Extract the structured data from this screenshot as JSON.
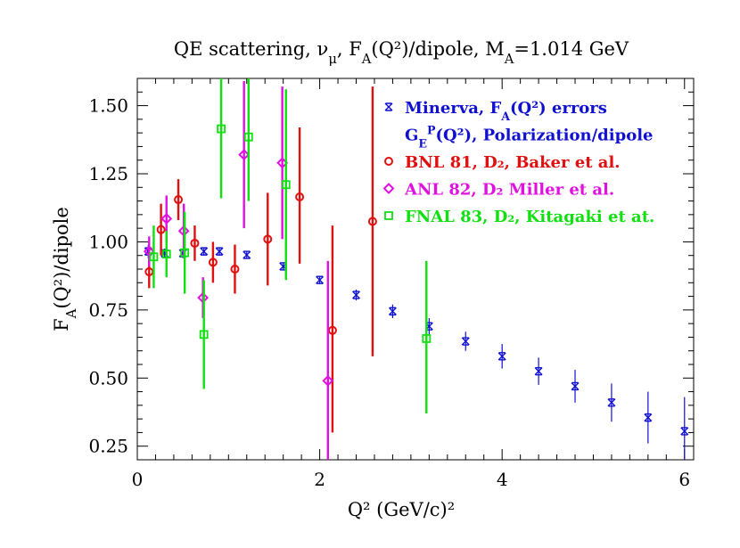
{
  "chart_data": {
    "type": "scatter",
    "title": "QE scattering, ν_μ, F_A(Q²)/dipole, M_A=1.014 GeV",
    "xlabel": "Q² (GeV/c)²",
    "ylabel": "F_A(Q²)/dipole",
    "xlim": [
      0,
      6.1
    ],
    "ylim": [
      0.2,
      1.6
    ],
    "x_ticks": [
      0,
      2,
      4,
      6
    ],
    "x_tick_labels": [
      "0",
      "2",
      "4",
      "6"
    ],
    "y_ticks": [
      0.25,
      0.5,
      0.75,
      1.0,
      1.25,
      1.5
    ],
    "y_tick_labels": [
      "0.25",
      "0.50",
      "0.75",
      "1.00",
      "1.25",
      "1.50"
    ],
    "legend_position": "top-right",
    "series": [
      {
        "name": "Minerva, F_A(Q²) errors",
        "marker": "star",
        "color": "#1010d0",
        "points": [
          {
            "x": 0.12,
            "y": 0.965,
            "lo": 0.94,
            "hi": 0.99
          },
          {
            "x": 0.3,
            "y": 0.958,
            "lo": 0.94,
            "hi": 0.975
          },
          {
            "x": 0.5,
            "y": 0.958,
            "lo": 0.94,
            "hi": 0.975
          },
          {
            "x": 0.73,
            "y": 0.965,
            "lo": 0.95,
            "hi": 0.98
          },
          {
            "x": 0.9,
            "y": 0.965,
            "lo": 0.95,
            "hi": 0.98
          },
          {
            "x": 1.2,
            "y": 0.952,
            "lo": 0.94,
            "hi": 0.965
          },
          {
            "x": 1.6,
            "y": 0.91,
            "lo": 0.895,
            "hi": 0.925
          },
          {
            "x": 2.0,
            "y": 0.86,
            "lo": 0.845,
            "hi": 0.875
          },
          {
            "x": 2.4,
            "y": 0.805,
            "lo": 0.785,
            "hi": 0.825
          },
          {
            "x": 2.8,
            "y": 0.745,
            "lo": 0.72,
            "hi": 0.77
          },
          {
            "x": 3.2,
            "y": 0.69,
            "lo": 0.66,
            "hi": 0.72
          },
          {
            "x": 3.6,
            "y": 0.635,
            "lo": 0.6,
            "hi": 0.67
          },
          {
            "x": 4.0,
            "y": 0.58,
            "lo": 0.535,
            "hi": 0.625
          },
          {
            "x": 4.4,
            "y": 0.525,
            "lo": 0.475,
            "hi": 0.575
          },
          {
            "x": 4.8,
            "y": 0.47,
            "lo": 0.41,
            "hi": 0.53
          },
          {
            "x": 5.2,
            "y": 0.41,
            "lo": 0.34,
            "hi": 0.48
          },
          {
            "x": 5.6,
            "y": 0.355,
            "lo": 0.26,
            "hi": 0.45
          },
          {
            "x": 6.0,
            "y": 0.305,
            "lo": 0.2,
            "hi": 0.43
          }
        ]
      },
      {
        "name": "G_E^P(Q²), Polarization/dipole",
        "marker": "none",
        "color": "#1010d0",
        "points": []
      },
      {
        "name": "BNL 81, D₂, Baker et al.",
        "marker": "circle",
        "color": "#e01010",
        "points": [
          {
            "x": 0.13,
            "y": 0.89,
            "lo": 0.83,
            "hi": 0.95
          },
          {
            "x": 0.26,
            "y": 1.045,
            "lo": 0.95,
            "hi": 1.14
          },
          {
            "x": 0.45,
            "y": 1.155,
            "lo": 1.08,
            "hi": 1.23
          },
          {
            "x": 0.63,
            "y": 0.995,
            "lo": 0.93,
            "hi": 1.06
          },
          {
            "x": 0.83,
            "y": 0.925,
            "lo": 0.85,
            "hi": 1.0
          },
          {
            "x": 1.07,
            "y": 0.9,
            "lo": 0.81,
            "hi": 0.99
          },
          {
            "x": 1.43,
            "y": 1.01,
            "lo": 0.84,
            "hi": 1.18
          },
          {
            "x": 1.78,
            "y": 1.165,
            "lo": 0.92,
            "hi": 1.42
          },
          {
            "x": 2.14,
            "y": 0.675,
            "lo": 0.3,
            "hi": 1.06
          },
          {
            "x": 2.58,
            "y": 1.075,
            "lo": 0.58,
            "hi": 1.57
          }
        ]
      },
      {
        "name": "ANL 82, D₂ Miller et al.",
        "marker": "diamond",
        "color": "#e010e0",
        "points": [
          {
            "x": 0.13,
            "y": 0.965,
            "lo": 0.91,
            "hi": 1.02
          },
          {
            "x": 0.32,
            "y": 1.085,
            "lo": 1.0,
            "hi": 1.17
          },
          {
            "x": 0.51,
            "y": 1.04,
            "lo": 0.94,
            "hi": 1.14
          },
          {
            "x": 0.72,
            "y": 0.795,
            "lo": 0.72,
            "hi": 0.87
          },
          {
            "x": 1.17,
            "y": 1.32,
            "lo": 1.05,
            "hi": 1.59
          },
          {
            "x": 1.59,
            "y": 1.29,
            "lo": 1.01,
            "hi": 1.57
          },
          {
            "x": 2.09,
            "y": 0.49,
            "lo": 0.05,
            "hi": 0.93
          }
        ]
      },
      {
        "name": "FNAL 83, D₂, Kitagaki et at.",
        "marker": "square",
        "color": "#10e010",
        "points": [
          {
            "x": 0.18,
            "y": 0.945,
            "lo": 0.83,
            "hi": 1.06
          },
          {
            "x": 0.32,
            "y": 0.955,
            "lo": 0.87,
            "hi": 1.04
          },
          {
            "x": 0.52,
            "y": 0.96,
            "lo": 0.81,
            "hi": 1.11
          },
          {
            "x": 0.73,
            "y": 0.66,
            "lo": 0.46,
            "hi": 0.86
          },
          {
            "x": 0.92,
            "y": 1.415,
            "lo": 1.16,
            "hi": 1.67
          },
          {
            "x": 1.22,
            "y": 1.385,
            "lo": 1.15,
            "hi": 1.62
          },
          {
            "x": 1.63,
            "y": 1.21,
            "lo": 0.86,
            "hi": 1.56
          },
          {
            "x": 3.17,
            "y": 0.645,
            "lo": 0.37,
            "hi": 0.93
          }
        ]
      }
    ]
  }
}
